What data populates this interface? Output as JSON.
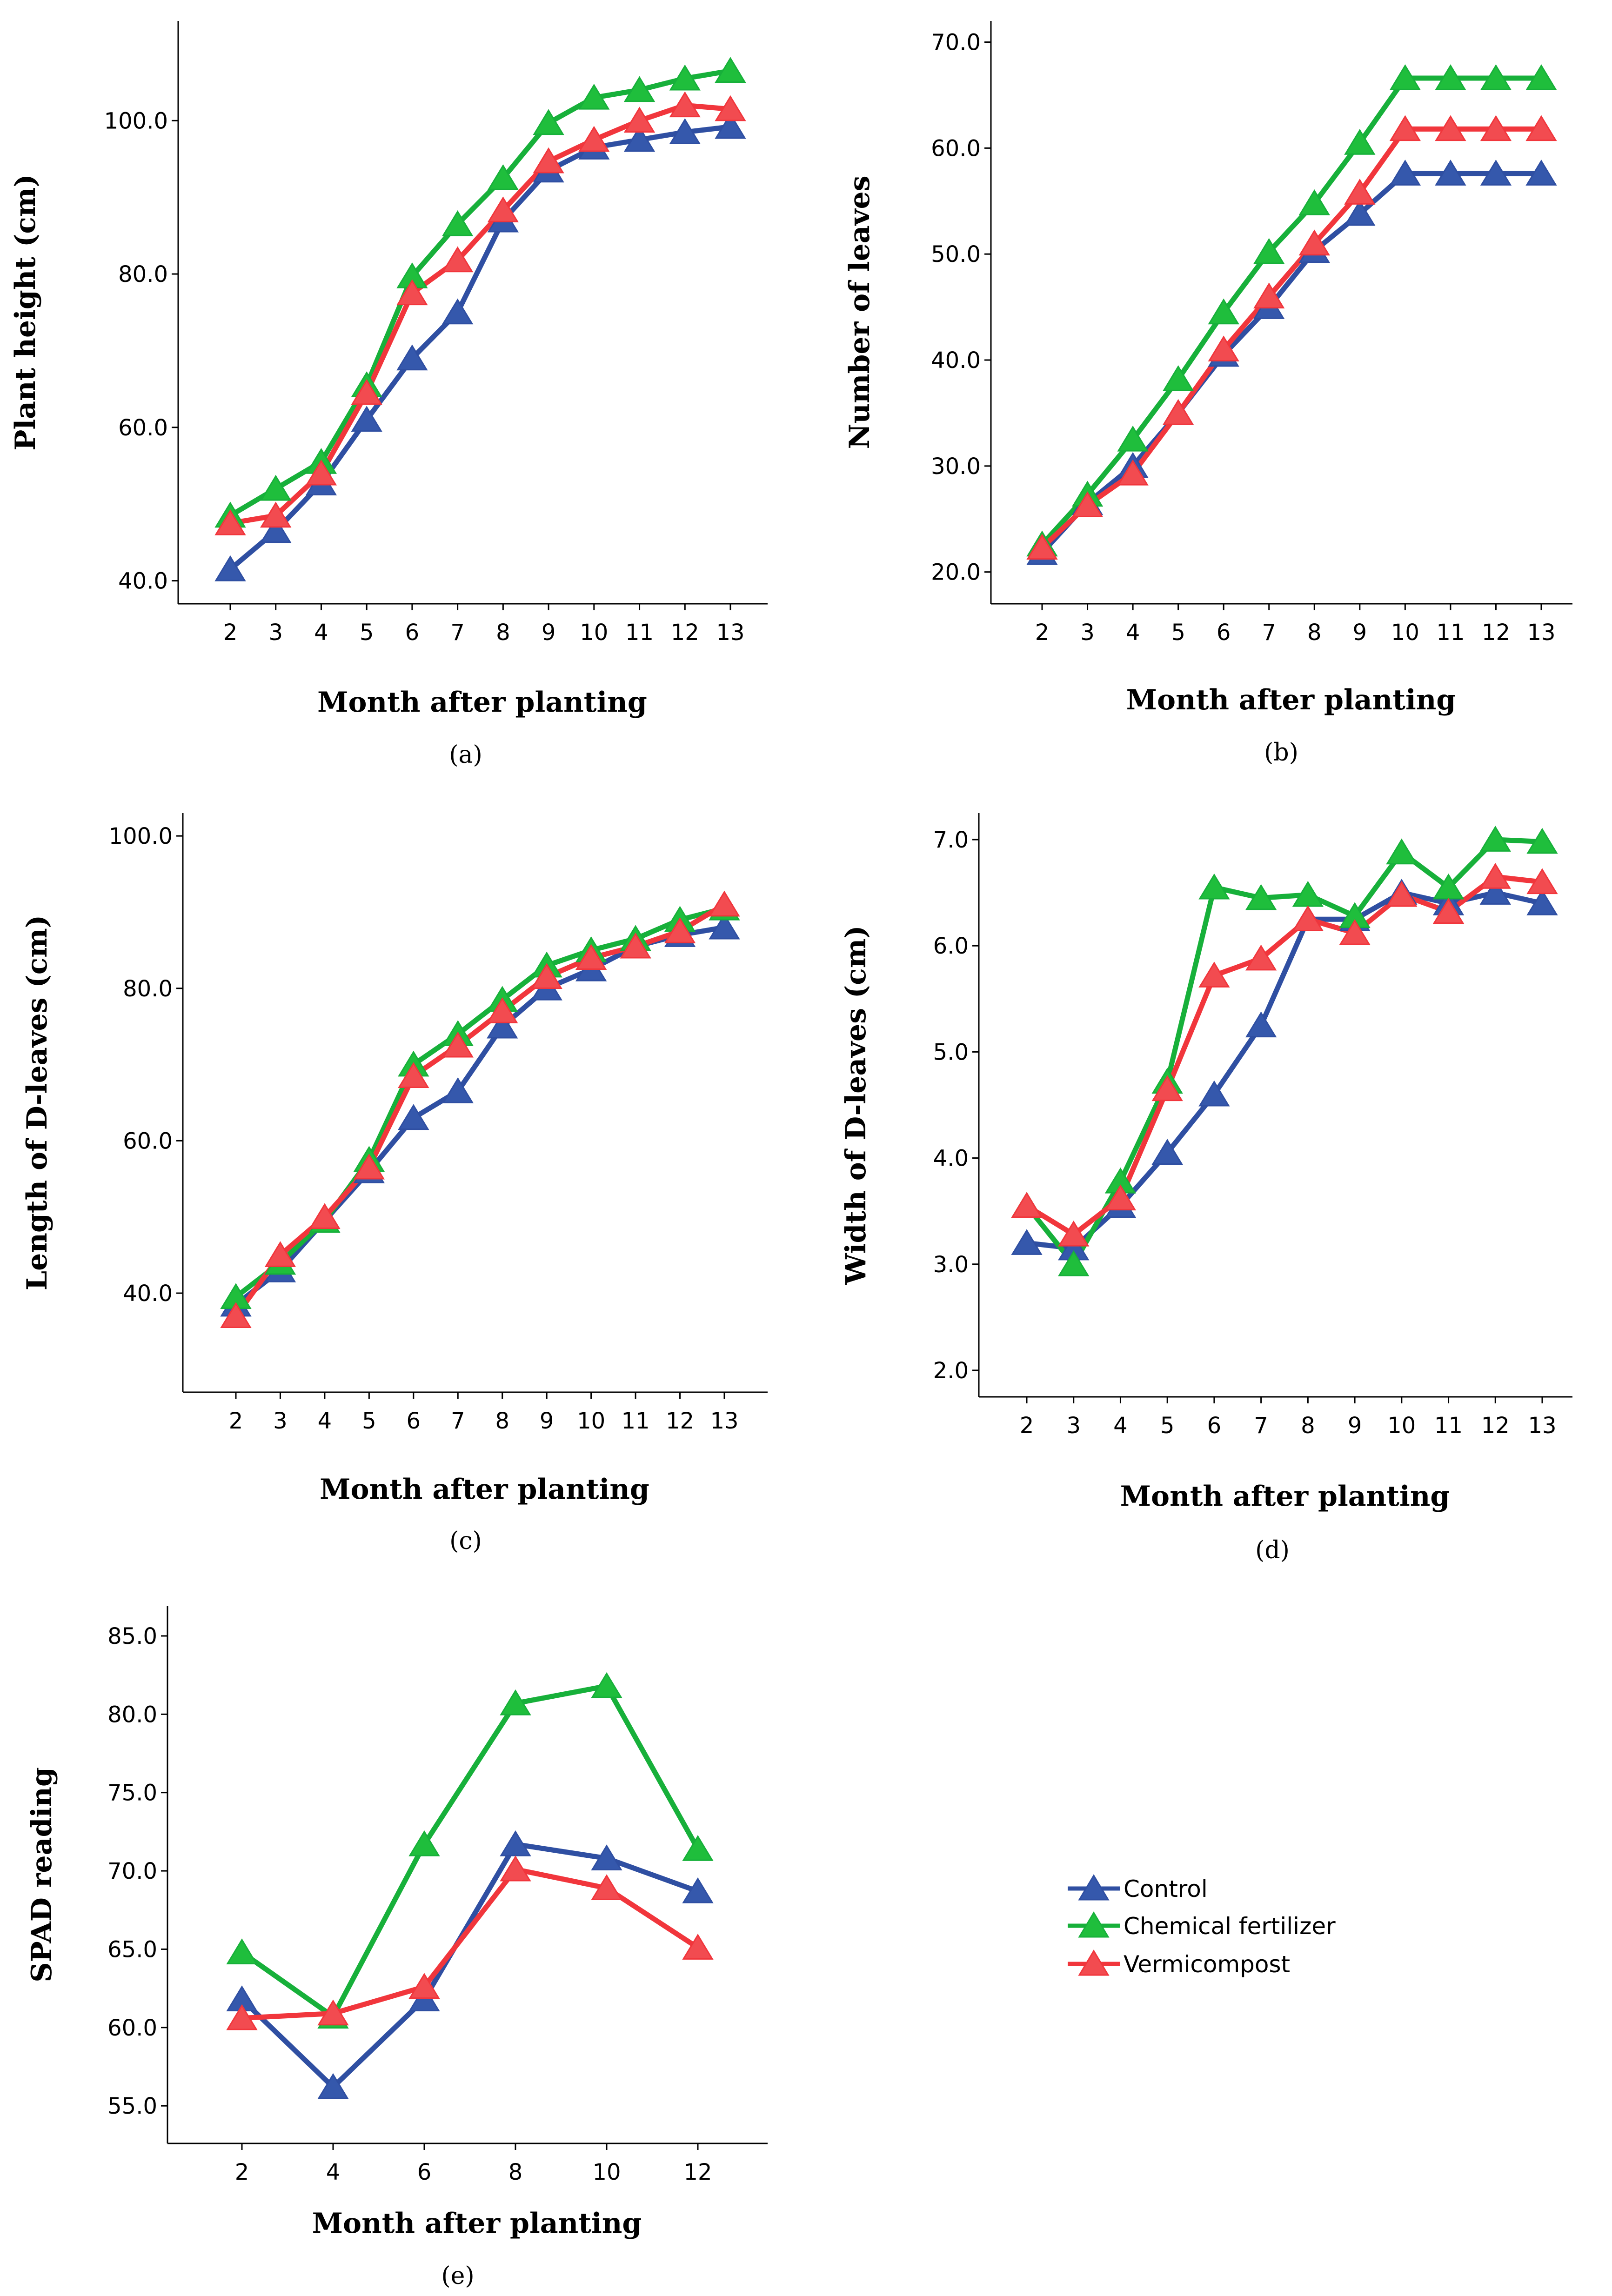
{
  "colors": {
    "control_fill": "#3558ac",
    "control_line": "#2f4fa2",
    "chemical_fill": "#1fbe3c",
    "chemical_line": "#17b03a",
    "vermi_fill": "#f24b50",
    "vermi_line": "#f1363c"
  },
  "legend": {
    "items": [
      {
        "label": "Control",
        "color_key": "control"
      },
      {
        "label": "Chemical fertilizer",
        "color_key": "chemical"
      },
      {
        "label": "Vermicompost",
        "color_key": "vermi"
      }
    ]
  },
  "chart_data": [
    {
      "panel": "(a)",
      "type": "line",
      "ylabel": "Plant height (cm)",
      "xlabel": "Month after planting",
      "x": [
        2,
        3,
        4,
        5,
        6,
        7,
        8,
        9,
        10,
        11,
        12,
        13
      ],
      "x_ticks": [
        "2",
        "3",
        "4",
        "5",
        "6",
        "7",
        "8",
        "9",
        "10",
        "11",
        "12",
        "13"
      ],
      "y_ticks": [
        "40.0",
        "60.0",
        "80.0",
        "100.0"
      ],
      "ylim": [
        37,
        113
      ],
      "series": [
        {
          "name": "Control",
          "color_key": "control",
          "values": [
            41.5,
            46.5,
            52.7,
            61.0,
            69.0,
            75.0,
            87.0,
            93.5,
            96.5,
            97.5,
            98.5,
            99.2
          ]
        },
        {
          "name": "Chemical fertilizer",
          "color_key": "chemical",
          "values": [
            48.5,
            52.0,
            55.5,
            65.5,
            79.7,
            86.5,
            92.5,
            99.7,
            103.0,
            104.0,
            105.5,
            106.5
          ]
        },
        {
          "name": "Vermicompost",
          "color_key": "vermi",
          "values": [
            47.5,
            48.5,
            54.0,
            64.5,
            77.5,
            81.8,
            88.3,
            94.7,
            97.5,
            100.0,
            102.0,
            101.5
          ]
        }
      ]
    },
    {
      "panel": "(b)",
      "type": "line",
      "ylabel": "Number of leaves",
      "xlabel": "Month after planting",
      "x": [
        2,
        3,
        4,
        5,
        6,
        7,
        8,
        9,
        10,
        11,
        12,
        13
      ],
      "x_ticks": [
        "2",
        "3",
        "4",
        "5",
        "6",
        "7",
        "8",
        "9",
        "10",
        "11",
        "12",
        "13"
      ],
      "y_ticks": [
        "20.0",
        "30.0",
        "40.0",
        "50.0",
        "60.0",
        "70.0"
      ],
      "ylim": [
        17,
        72
      ],
      "series": [
        {
          "name": "Control",
          "color_key": "control",
          "values": [
            21.8,
            26.5,
            30.0,
            35.0,
            40.5,
            45.0,
            50.3,
            53.8,
            57.6,
            57.6,
            57.6,
            57.6
          ]
        },
        {
          "name": "Chemical fertilizer",
          "color_key": "chemical",
          "values": [
            22.6,
            27.3,
            32.5,
            38.2,
            44.5,
            50.2,
            54.8,
            60.5,
            66.6,
            66.6,
            66.6,
            66.6
          ]
        },
        {
          "name": "Vermicompost",
          "color_key": "vermi",
          "values": [
            22.3,
            26.3,
            29.3,
            35.0,
            41.0,
            46.0,
            51.0,
            55.8,
            61.8,
            61.8,
            61.8,
            61.8
          ]
        }
      ]
    },
    {
      "panel": "(c)",
      "type": "line",
      "ylabel": "Length of D-leaves (cm)",
      "xlabel": "Month after planting",
      "x": [
        2,
        3,
        4,
        5,
        6,
        7,
        8,
        9,
        10,
        11,
        12,
        13
      ],
      "x_ticks": [
        "2",
        "3",
        "4",
        "5",
        "6",
        "7",
        "8",
        "9",
        "10",
        "11",
        "12",
        "13"
      ],
      "y_ticks": [
        "40.0",
        "60.0",
        "80.0",
        "100.0"
      ],
      "ylim": [
        27,
        103
      ],
      "series": [
        {
          "name": "Control",
          "color_key": "control",
          "values": [
            38.5,
            43.0,
            49.5,
            56.0,
            63.0,
            66.5,
            75.0,
            80.0,
            82.5,
            85.5,
            87.0,
            88.0
          ]
        },
        {
          "name": "Chemical fertilizer",
          "color_key": "chemical",
          "values": [
            39.5,
            44.0,
            49.5,
            57.5,
            70.0,
            74.0,
            78.5,
            83.0,
            85.0,
            86.5,
            89.0,
            90.5
          ]
        },
        {
          "name": "Vermicompost",
          "color_key": "vermi",
          "values": [
            37.0,
            45.0,
            50.0,
            56.5,
            68.5,
            72.5,
            77.0,
            81.5,
            84.0,
            85.5,
            87.5,
            91.0
          ]
        }
      ]
    },
    {
      "panel": "(d)",
      "type": "line",
      "ylabel": "Width of D-leaves (cm)",
      "xlabel": "Month after planting",
      "x": [
        2,
        3,
        4,
        5,
        6,
        7,
        8,
        9,
        10,
        11,
        12,
        13
      ],
      "x_ticks": [
        "2",
        "3",
        "4",
        "5",
        "6",
        "7",
        "8",
        "9",
        "10",
        "11",
        "12",
        "13"
      ],
      "y_ticks": [
        "2.0",
        "3.0",
        "4.0",
        "5.0",
        "6.0",
        "7.0"
      ],
      "ylim": [
        1.75,
        7.25
      ],
      "series": [
        {
          "name": "Control",
          "color_key": "control",
          "values": [
            3.2,
            3.15,
            3.55,
            4.05,
            4.6,
            5.25,
            6.25,
            6.25,
            6.5,
            6.4,
            6.5,
            6.4
          ]
        },
        {
          "name": "Chemical fertilizer",
          "color_key": "chemical",
          "values": [
            3.55,
            3.0,
            3.78,
            4.72,
            6.55,
            6.45,
            6.48,
            6.28,
            6.88,
            6.55,
            7.0,
            6.98
          ]
        },
        {
          "name": "Vermicompost",
          "color_key": "vermi",
          "values": [
            3.55,
            3.28,
            3.62,
            4.65,
            5.72,
            5.88,
            6.25,
            6.12,
            6.48,
            6.32,
            6.65,
            6.6
          ]
        }
      ]
    },
    {
      "panel": "(e)",
      "type": "line",
      "ylabel": "SPAD reading",
      "xlabel": "Month after planting",
      "x": [
        2,
        4,
        6,
        8,
        10,
        12
      ],
      "x_ticks": [
        "2",
        "4",
        "6",
        "8",
        "10",
        "12"
      ],
      "y_ticks": [
        "55.0",
        "60.0",
        "65.0",
        "70.0",
        "75.0",
        "80.0",
        "85.0"
      ],
      "ylim": [
        52.6,
        86.9
      ],
      "series": [
        {
          "name": "Control",
          "color_key": "control",
          "values": [
            61.8,
            56.2,
            61.8,
            71.7,
            70.8,
            68.7
          ]
        },
        {
          "name": "Chemical fertilizer",
          "color_key": "chemical",
          "values": [
            64.8,
            60.7,
            71.7,
            80.7,
            81.8,
            71.4
          ]
        },
        {
          "name": "Vermicompost",
          "color_key": "vermi",
          "values": [
            60.6,
            60.9,
            62.6,
            70.1,
            68.9,
            65.1
          ]
        }
      ]
    }
  ]
}
